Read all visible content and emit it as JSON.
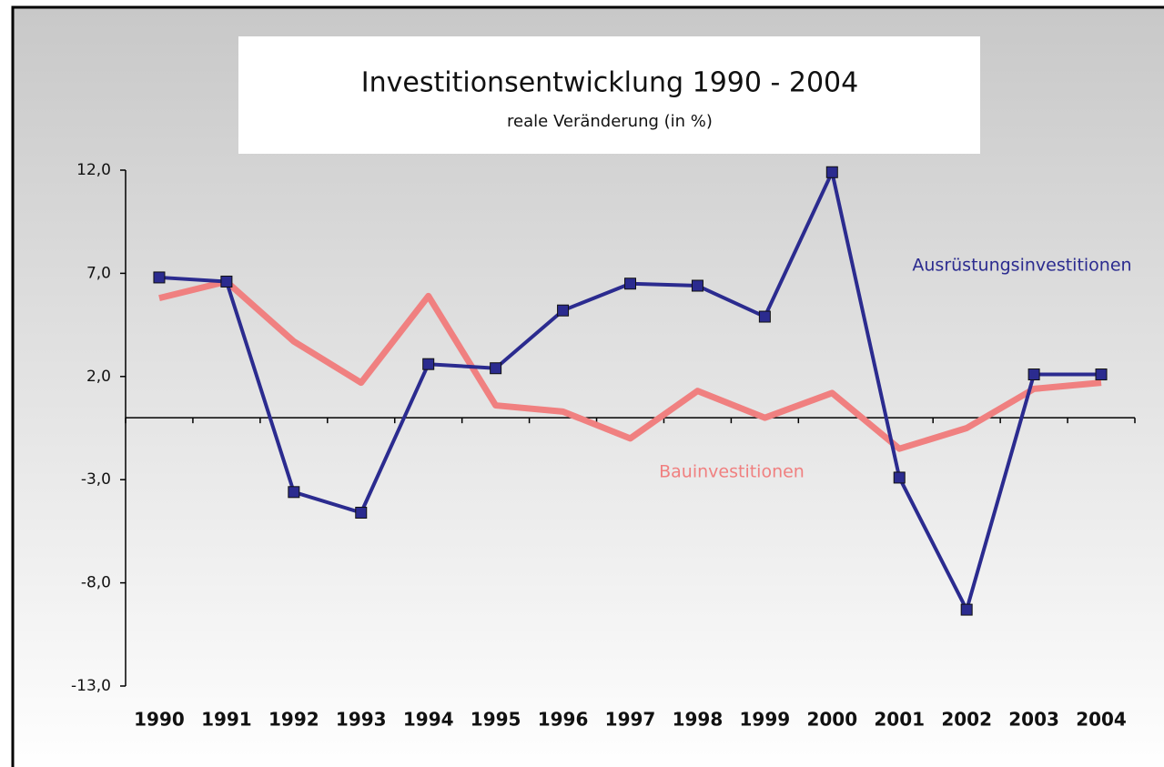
{
  "chart_data": {
    "type": "line",
    "title": "Investitionsentwicklung  1990 - 2004",
    "subtitle": "reale Veränderung (in %)",
    "categories": [
      "1990",
      "1991",
      "1992",
      "1993",
      "1994",
      "1995",
      "1996",
      "1997",
      "1998",
      "1999",
      "2000",
      "2001",
      "2002",
      "2003",
      "2004"
    ],
    "series": [
      {
        "name": "Ausrüstungsinvestitionen",
        "color": "#2b2b8f",
        "markers": true,
        "values": [
          6.8,
          6.6,
          -3.6,
          -4.6,
          2.6,
          2.4,
          5.2,
          6.5,
          6.4,
          4.9,
          11.9,
          -2.9,
          -9.3,
          2.1,
          2.1
        ]
      },
      {
        "name": "Bauinvestitionen",
        "color": "#f08080",
        "markers": false,
        "values": [
          5.8,
          6.6,
          3.7,
          1.7,
          5.9,
          0.6,
          0.3,
          -1.0,
          1.3,
          0.0,
          1.2,
          -1.5,
          -0.5,
          1.4,
          1.7
        ]
      }
    ],
    "ylim": [
      -13,
      12
    ],
    "yticks": [
      {
        "value": -13,
        "label": "-13,0"
      },
      {
        "value": -8,
        "label": "-8,0"
      },
      {
        "value": -3,
        "label": "-3,0"
      },
      {
        "value": 2,
        "label": "2,0"
      },
      {
        "value": 7,
        "label": "7,0"
      },
      {
        "value": 12,
        "label": "12,0"
      }
    ],
    "grid": false
  }
}
